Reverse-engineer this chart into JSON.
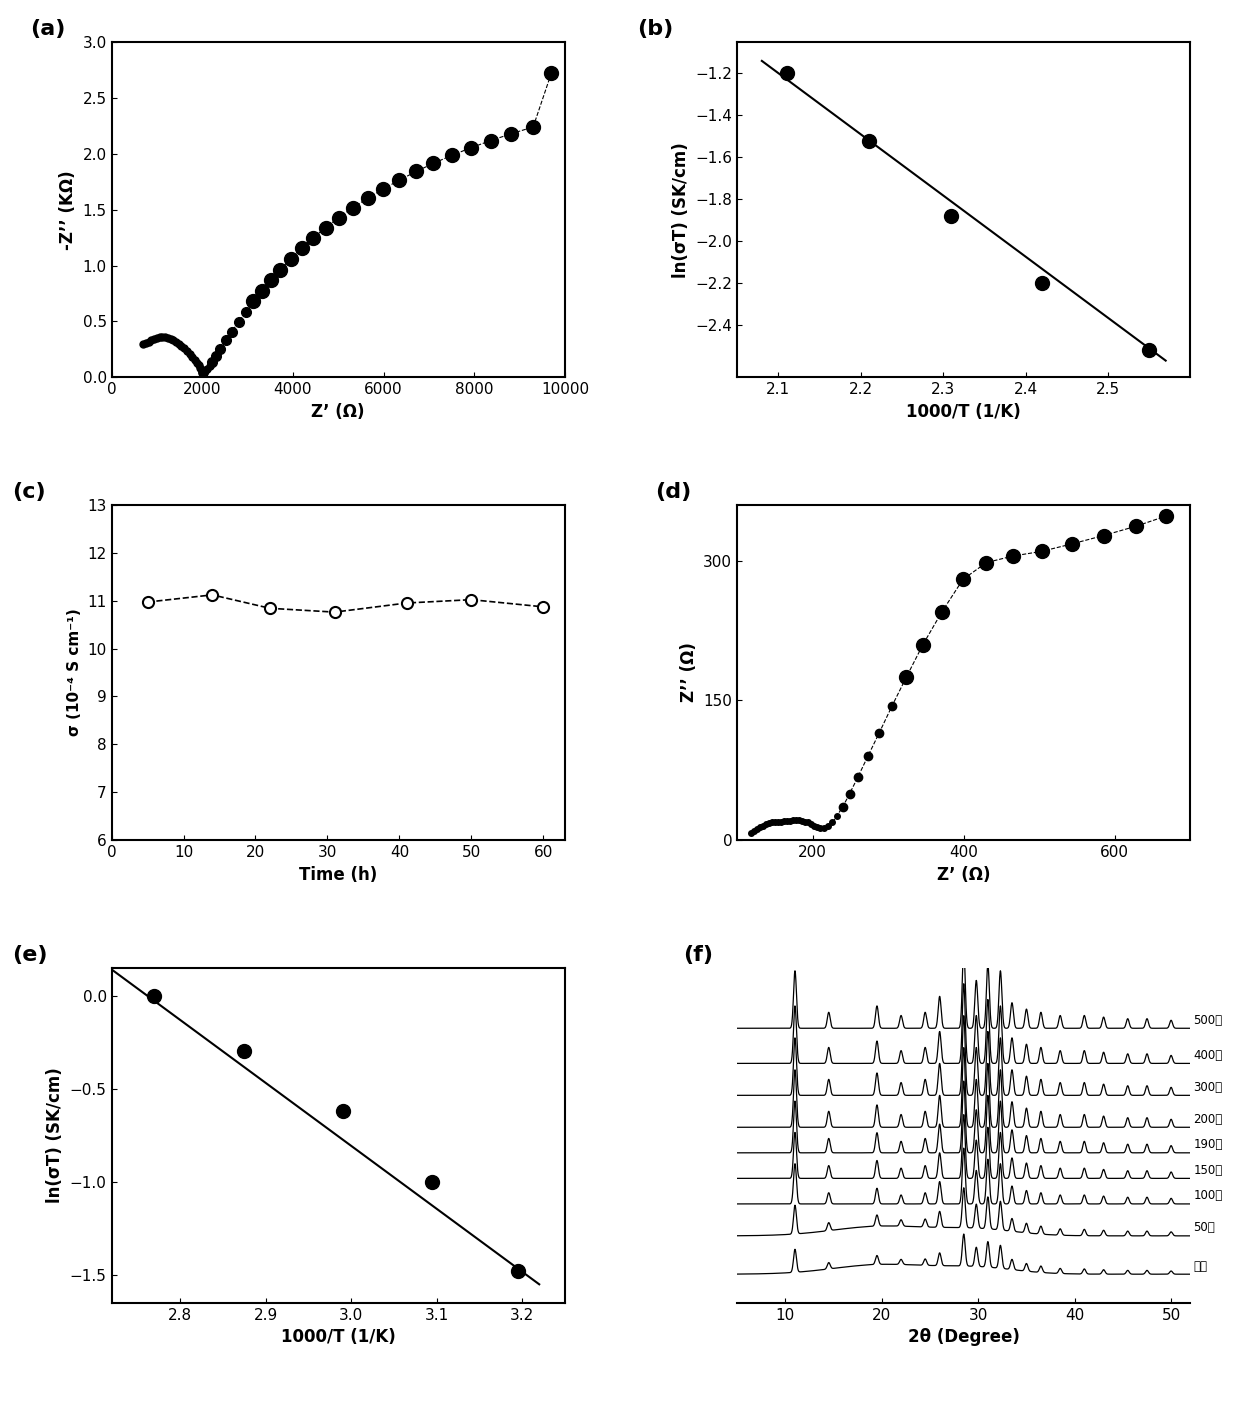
{
  "panel_a": {
    "label": "(a)",
    "xlabel": "Z’ (Ω)",
    "ylabel": "-Z’’ (KΩ)",
    "xlim": [
      0,
      10000
    ],
    "ylim": [
      0,
      3.0
    ],
    "xticks": [
      0,
      2000,
      4000,
      6000,
      8000,
      10000
    ],
    "yticks": [
      0.0,
      0.5,
      1.0,
      1.5,
      2.0,
      2.5,
      3.0
    ],
    "x": [
      700,
      760,
      820,
      880,
      940,
      1000,
      1060,
      1120,
      1180,
      1240,
      1300,
      1360,
      1420,
      1480,
      1540,
      1600,
      1660,
      1720,
      1780,
      1840,
      1880,
      1920,
      1950,
      1970,
      1985,
      1995,
      2005,
      2020,
      2040,
      2070,
      2110,
      2160,
      2220,
      2300,
      2400,
      2520,
      2650,
      2800,
      2960,
      3130,
      3310,
      3510,
      3720,
      3950,
      4190,
      4450,
      4720,
      5010,
      5320,
      5650,
      5990,
      6350,
      6720,
      7100,
      7500,
      7920,
      8360,
      8820,
      9300,
      9700
    ],
    "y": [
      0.3,
      0.31,
      0.32,
      0.33,
      0.345,
      0.355,
      0.36,
      0.362,
      0.36,
      0.355,
      0.347,
      0.335,
      0.32,
      0.302,
      0.282,
      0.26,
      0.236,
      0.21,
      0.182,
      0.153,
      0.13,
      0.108,
      0.088,
      0.072,
      0.058,
      0.047,
      0.04,
      0.038,
      0.042,
      0.055,
      0.075,
      0.103,
      0.14,
      0.19,
      0.255,
      0.33,
      0.41,
      0.495,
      0.585,
      0.68,
      0.775,
      0.87,
      0.965,
      1.06,
      1.155,
      1.248,
      1.34,
      1.43,
      1.518,
      1.603,
      1.685,
      1.765,
      1.842,
      1.915,
      1.985,
      2.053,
      2.118,
      2.18,
      2.24,
      2.72
    ]
  },
  "panel_b": {
    "label": "(b)",
    "xlabel": "1000/T (1/K)",
    "ylabel": "ln(σT) (SK/cm)",
    "xlim": [
      2.05,
      2.6
    ],
    "ylim": [
      -2.65,
      -1.05
    ],
    "xticks": [
      2.1,
      2.2,
      2.3,
      2.4,
      2.5
    ],
    "yticks": [
      -2.4,
      -2.2,
      -2.0,
      -1.8,
      -1.6,
      -1.4,
      -1.2
    ],
    "scatter_x": [
      2.11,
      2.21,
      2.31,
      2.42,
      2.55
    ],
    "scatter_y": [
      -1.2,
      -1.52,
      -1.88,
      -2.2,
      -2.52
    ],
    "line_x": [
      2.08,
      2.57
    ],
    "line_y": [
      -1.14,
      -2.57
    ]
  },
  "panel_c": {
    "label": "(c)",
    "xlabel": "Time (h)",
    "ylabel": "σ (10⁻⁴ S cm⁻¹)",
    "xlim": [
      0,
      63
    ],
    "ylim": [
      6,
      13
    ],
    "xticks": [
      0,
      10,
      20,
      30,
      40,
      50,
      60
    ],
    "yticks": [
      6,
      7,
      8,
      9,
      10,
      11,
      12,
      13
    ],
    "x": [
      5,
      14,
      22,
      31,
      41,
      50,
      60
    ],
    "y": [
      10.97,
      11.12,
      10.84,
      10.76,
      10.95,
      11.02,
      10.87
    ]
  },
  "panel_d": {
    "label": "(d)",
    "xlabel": "Z’ (Ω)",
    "ylabel": "Z’’ (Ω)",
    "xlim": [
      100,
      700
    ],
    "ylim": [
      0,
      360
    ],
    "xticks": [
      200,
      400,
      600
    ],
    "yticks": [
      0,
      150,
      300
    ],
    "x": [
      118,
      122,
      126,
      130,
      134,
      138,
      142,
      146,
      150,
      154,
      158,
      162,
      166,
      170,
      174,
      178,
      182,
      186,
      190,
      194,
      198,
      202,
      206,
      210,
      215,
      220,
      226,
      232,
      240,
      249,
      260,
      273,
      288,
      305,
      324,
      346,
      371,
      399,
      430,
      465,
      503,
      543,
      585,
      628,
      668
    ],
    "y": [
      8,
      10,
      12,
      14,
      15,
      17,
      18,
      19,
      19,
      20,
      20,
      21,
      21,
      21,
      22,
      22,
      22,
      21,
      20,
      19,
      17,
      15,
      14,
      13,
      13,
      15,
      19,
      26,
      36,
      50,
      68,
      90,
      115,
      144,
      175,
      210,
      245,
      280,
      298,
      305,
      310,
      318,
      327,
      337,
      348
    ]
  },
  "panel_e": {
    "label": "(e)",
    "xlabel": "1000/T (1/K)",
    "ylabel": "ln(σT) (SK/cm)",
    "xlim": [
      2.72,
      3.25
    ],
    "ylim": [
      -1.65,
      0.15
    ],
    "xticks": [
      2.8,
      2.9,
      3.0,
      3.1,
      3.2
    ],
    "yticks": [
      -1.5,
      -1.0,
      -0.5,
      0.0
    ],
    "scatter_x": [
      2.77,
      2.875,
      2.99,
      3.095,
      3.195
    ],
    "scatter_y": [
      0.0,
      -0.3,
      -0.62,
      -1.0,
      -1.48
    ],
    "line_x": [
      2.72,
      3.22
    ],
    "line_y": [
      0.14,
      -1.55
    ]
  },
  "panel_f": {
    "label": "(f)",
    "xlabel": "2θ (Degree)",
    "xlim": [
      5,
      52
    ],
    "ylim": [
      0,
      10.5
    ],
    "xticks": [
      10,
      20,
      30,
      40,
      50
    ],
    "labels": [
      "500度",
      "400度",
      "300度",
      "200度",
      "190度",
      "150度",
      "100度",
      "50度",
      "原料"
    ],
    "offsets": [
      8.6,
      7.5,
      6.5,
      5.5,
      4.7,
      3.9,
      3.1,
      2.1,
      0.9
    ],
    "peak_positions": [
      11.0,
      14.5,
      19.5,
      22.0,
      24.5,
      26.0,
      28.5,
      29.8,
      31.0,
      32.3,
      33.5,
      35.0,
      36.5,
      38.5,
      41.0,
      43.0,
      45.5,
      47.5,
      50.0
    ],
    "peak_heights": [
      1.8,
      0.5,
      0.7,
      0.4,
      0.5,
      1.0,
      2.5,
      1.5,
      2.0,
      1.8,
      0.8,
      0.6,
      0.5,
      0.4,
      0.4,
      0.35,
      0.3,
      0.3,
      0.25
    ]
  }
}
